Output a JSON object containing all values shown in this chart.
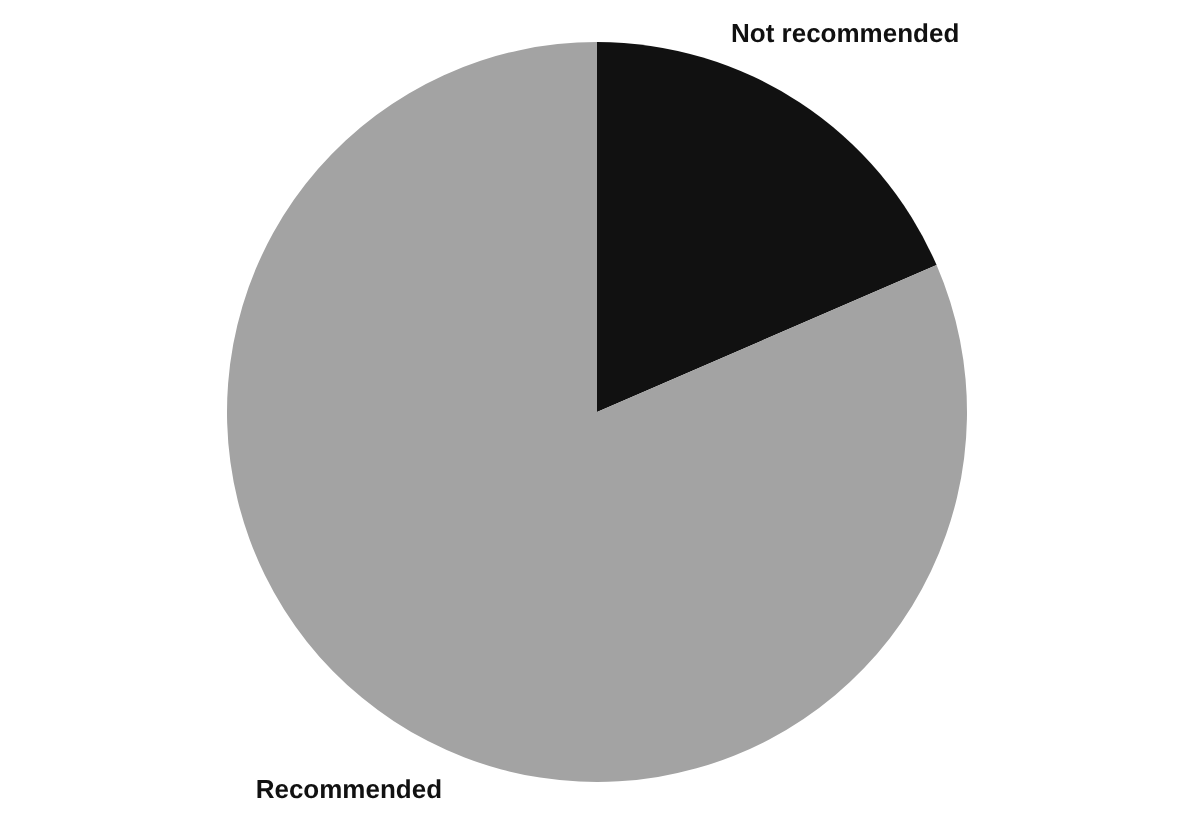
{
  "chart_data": {
    "type": "pie",
    "categories": [
      "Not recommended",
      "Recommended"
    ],
    "values": [
      18.5,
      81.5
    ],
    "colors": [
      "#111111",
      "#a3a3a3"
    ]
  }
}
